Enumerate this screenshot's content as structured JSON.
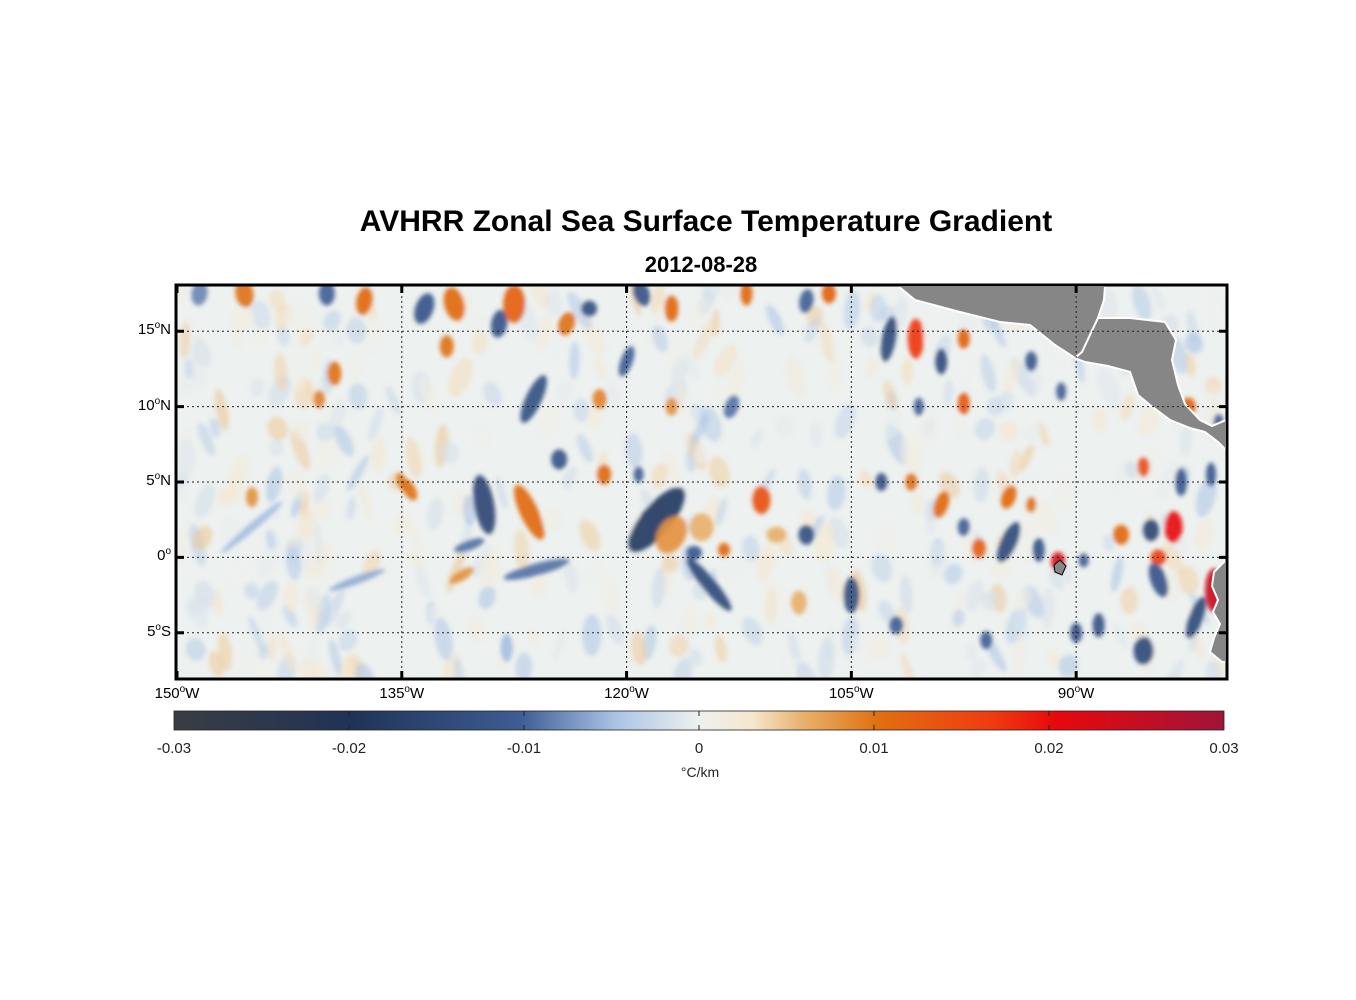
{
  "title": "AVHRR Zonal Sea Surface Temperature Gradient",
  "subtitle": "2012-08-28",
  "lat_labels": [
    {
      "deg": "15",
      "sup": "o",
      "hem": "N",
      "value": 15
    },
    {
      "deg": "10",
      "sup": "o",
      "hem": "N",
      "value": 10
    },
    {
      "deg": "5",
      "sup": "o",
      "hem": "N",
      "value": 5
    },
    {
      "deg": "0",
      "sup": "o",
      "hem": "",
      "value": 0
    },
    {
      "deg": "5",
      "sup": "o",
      "hem": "S",
      "value": -5
    }
  ],
  "lon_labels": [
    {
      "deg": "150",
      "sup": "o",
      "hem": "W",
      "value": -150
    },
    {
      "deg": "135",
      "sup": "o",
      "hem": "W",
      "value": -135
    },
    {
      "deg": "120",
      "sup": "o",
      "hem": "W",
      "value": -120
    },
    {
      "deg": "105",
      "sup": "o",
      "hem": "W",
      "value": -105
    },
    {
      "deg": "90",
      "sup": "o",
      "hem": "W",
      "value": -90
    }
  ],
  "colorbar": {
    "ticks": [
      "-0.03",
      "-0.02",
      "-0.01",
      "0",
      "0.01",
      "0.02",
      "0.03"
    ],
    "units": "°C/km",
    "range": [
      -0.03,
      0.03
    ],
    "stops": [
      {
        "v": 0.0,
        "c": "#3a3d42"
      },
      {
        "v": 0.17,
        "c": "#1f3357"
      },
      {
        "v": 0.33,
        "c": "#3e5d94"
      },
      {
        "v": 0.42,
        "c": "#a9c3e6"
      },
      {
        "v": 0.5,
        "c": "#eef1ee"
      },
      {
        "v": 0.55,
        "c": "#f6e7cf"
      },
      {
        "v": 0.6,
        "c": "#e8b06b"
      },
      {
        "v": 0.67,
        "c": "#e07010"
      },
      {
        "v": 0.78,
        "c": "#f03a10"
      },
      {
        "v": 0.84,
        "c": "#e8080c"
      },
      {
        "v": 1.0,
        "c": "#a0143a"
      }
    ]
  },
  "map": {
    "lon_range": [
      -150,
      -80
    ],
    "lat_range": [
      -8,
      18
    ],
    "background": "#edf1ef",
    "land_color": "#868686"
  },
  "features": [
    {
      "lon": -148.5,
      "lat": 17.5,
      "v": -0.008,
      "rx": 8,
      "ry": 12,
      "rot": 10
    },
    {
      "lon": -145.5,
      "lat": 17.5,
      "v": 0.01,
      "rx": 9,
      "ry": 14,
      "rot": -10
    },
    {
      "lon": -140,
      "lat": 17.5,
      "v": -0.01,
      "rx": 8,
      "ry": 12,
      "rot": 0
    },
    {
      "lon": -137.5,
      "lat": 17.0,
      "v": 0.011,
      "rx": 8,
      "ry": 14,
      "rot": 10
    },
    {
      "lon": -139.5,
      "lat": 12.2,
      "v": 0.01,
      "rx": 7,
      "ry": 12,
      "rot": 0
    },
    {
      "lon": -140.5,
      "lat": 10.5,
      "v": 0.009,
      "rx": 6,
      "ry": 9,
      "rot": 0
    },
    {
      "lon": -133.5,
      "lat": 16.5,
      "v": -0.012,
      "rx": 9,
      "ry": 16,
      "rot": 20
    },
    {
      "lon": -131.5,
      "lat": 16.8,
      "v": 0.011,
      "rx": 10,
      "ry": 17,
      "rot": -15
    },
    {
      "lon": -132.0,
      "lat": 14.0,
      "v": 0.01,
      "rx": 7,
      "ry": 11,
      "rot": 0
    },
    {
      "lon": -128.5,
      "lat": 15.5,
      "v": -0.012,
      "rx": 8,
      "ry": 14,
      "rot": 10
    },
    {
      "lon": -127.5,
      "lat": 16.8,
      "v": 0.012,
      "rx": 11,
      "ry": 19,
      "rot": 0
    },
    {
      "lon": -124,
      "lat": 15.5,
      "v": 0.01,
      "rx": 8,
      "ry": 12,
      "rot": 20
    },
    {
      "lon": -122.5,
      "lat": 16.5,
      "v": -0.013,
      "rx": 8,
      "ry": 8,
      "rot": 0
    },
    {
      "lon": -119,
      "lat": 17.5,
      "v": -0.012,
      "rx": 8,
      "ry": 13,
      "rot": -20
    },
    {
      "lon": -117,
      "lat": 16.5,
      "v": 0.011,
      "rx": 7,
      "ry": 13,
      "rot": 0
    },
    {
      "lon": -126.2,
      "lat": 10.5,
      "v": -0.013,
      "rx": 8,
      "ry": 26,
      "rot": 25
    },
    {
      "lon": -121.8,
      "lat": 10.5,
      "v": 0.009,
      "rx": 7,
      "ry": 10,
      "rot": 0
    },
    {
      "lon": -120,
      "lat": 13.0,
      "v": -0.01,
      "rx": 6,
      "ry": 16,
      "rot": 20
    },
    {
      "lon": -117,
      "lat": 10.0,
      "v": 0.008,
      "rx": 6,
      "ry": 9,
      "rot": 0
    },
    {
      "lon": -113,
      "lat": 10.0,
      "v": -0.009,
      "rx": 7,
      "ry": 12,
      "rot": 20
    },
    {
      "lon": -112,
      "lat": 17.5,
      "v": 0.011,
      "rx": 6,
      "ry": 12,
      "rot": 0
    },
    {
      "lon": -108,
      "lat": 17.0,
      "v": -0.01,
      "rx": 7,
      "ry": 12,
      "rot": 10
    },
    {
      "lon": -106.5,
      "lat": 17.5,
      "v": 0.012,
      "rx": 7,
      "ry": 10,
      "rot": 0
    },
    {
      "lon": -102.5,
      "lat": 14.5,
      "v": -0.014,
      "rx": 7,
      "ry": 23,
      "rot": 10
    },
    {
      "lon": -100.7,
      "lat": 14.5,
      "v": 0.017,
      "rx": 8,
      "ry": 20,
      "rot": 0
    },
    {
      "lon": -99,
      "lat": 13.0,
      "v": -0.014,
      "rx": 6,
      "ry": 13,
      "rot": 0
    },
    {
      "lon": -97.5,
      "lat": 14.5,
      "v": 0.012,
      "rx": 6,
      "ry": 10,
      "rot": 0
    },
    {
      "lon": -97.5,
      "lat": 10.2,
      "v": 0.013,
      "rx": 6,
      "ry": 11,
      "rot": 0
    },
    {
      "lon": -100.5,
      "lat": 10.0,
      "v": -0.01,
      "rx": 5,
      "ry": 9,
      "rot": 0
    },
    {
      "lon": -93,
      "lat": 13.0,
      "v": -0.011,
      "rx": 6,
      "ry": 10,
      "rot": 0
    },
    {
      "lon": -91,
      "lat": 11.0,
      "v": -0.01,
      "rx": 5,
      "ry": 9,
      "rot": 0
    },
    {
      "lon": -82.5,
      "lat": 10.0,
      "v": 0.012,
      "rx": 7,
      "ry": 9,
      "rot": 0
    },
    {
      "lon": -80.5,
      "lat": 9.0,
      "v": -0.01,
      "rx": 5,
      "ry": 8,
      "rot": 0
    },
    {
      "lon": -145,
      "lat": 4.0,
      "v": 0.008,
      "rx": 6,
      "ry": 10,
      "rot": 0
    },
    {
      "lon": -135.0,
      "lat": 5.0,
      "v": 0.009,
      "rx": 5,
      "ry": 10,
      "rot": -20
    },
    {
      "lon": -134.5,
      "lat": 4.5,
      "v": 0.01,
      "rx": 6,
      "ry": 12,
      "rot": -30
    },
    {
      "lon": -129.5,
      "lat": 3.5,
      "v": -0.015,
      "rx": 10,
      "ry": 30,
      "rot": -10
    },
    {
      "lon": -126.5,
      "lat": 3.0,
      "v": 0.011,
      "rx": 9,
      "ry": 30,
      "rot": -25
    },
    {
      "lon": -124.5,
      "lat": 6.5,
      "v": -0.012,
      "rx": 8,
      "ry": 10,
      "rot": 0
    },
    {
      "lon": -121.5,
      "lat": 5.5,
      "v": 0.011,
      "rx": 7,
      "ry": 10,
      "rot": 0
    },
    {
      "lon": -119.2,
      "lat": 5.5,
      "v": -0.01,
      "rx": 5,
      "ry": 8,
      "rot": 0
    },
    {
      "lon": -118,
      "lat": 2.5,
      "v": -0.018,
      "rx": 15,
      "ry": 40,
      "rot": 40
    },
    {
      "lon": -117,
      "lat": 1.5,
      "v": 0.008,
      "rx": 14,
      "ry": 20,
      "rot": 30
    },
    {
      "lon": -115,
      "lat": 2.0,
      "v": 0.006,
      "rx": 12,
      "ry": 14,
      "rot": 0
    },
    {
      "lon": -115.5,
      "lat": 0.3,
      "v": -0.011,
      "rx": 8,
      "ry": 7,
      "rot": 0
    },
    {
      "lon": -113.5,
      "lat": 0.5,
      "v": 0.011,
      "rx": 6,
      "ry": 7,
      "rot": 0
    },
    {
      "lon": -111,
      "lat": 3.8,
      "v": 0.014,
      "rx": 9,
      "ry": 14,
      "rot": 0
    },
    {
      "lon": -110,
      "lat": 1.5,
      "v": 0.006,
      "rx": 10,
      "ry": 8,
      "rot": 0
    },
    {
      "lon": -114.5,
      "lat": -1.8,
      "v": -0.014,
      "rx": 7,
      "ry": 34,
      "rot": -40
    },
    {
      "lon": -108,
      "lat": 1.5,
      "v": -0.013,
      "rx": 8,
      "ry": 10,
      "rot": 0
    },
    {
      "lon": -105,
      "lat": -2.5,
      "v": -0.013,
      "rx": 8,
      "ry": 18,
      "rot": 0
    },
    {
      "lon": -103,
      "lat": 5.0,
      "v": -0.012,
      "rx": 6,
      "ry": 9,
      "rot": 0
    },
    {
      "lon": -101,
      "lat": 5.0,
      "v": 0.01,
      "rx": 6,
      "ry": 9,
      "rot": 0
    },
    {
      "lon": -99,
      "lat": 3.5,
      "v": 0.011,
      "rx": 7,
      "ry": 14,
      "rot": 20
    },
    {
      "lon": -97.5,
      "lat": 2.0,
      "v": -0.01,
      "rx": 6,
      "ry": 9,
      "rot": 0
    },
    {
      "lon": -96.5,
      "lat": 0.6,
      "v": 0.012,
      "rx": 7,
      "ry": 10,
      "rot": 0
    },
    {
      "lon": -94.5,
      "lat": 4.0,
      "v": 0.011,
      "rx": 7,
      "ry": 12,
      "rot": 20
    },
    {
      "lon": -94.5,
      "lat": 1.0,
      "v": -0.014,
      "rx": 8,
      "ry": 22,
      "rot": 25
    },
    {
      "lon": -93,
      "lat": 3.5,
      "v": 0.01,
      "rx": 5,
      "ry": 8,
      "rot": 0
    },
    {
      "lon": -92.5,
      "lat": 0.5,
      "v": -0.012,
      "rx": 6,
      "ry": 12,
      "rot": 0
    },
    {
      "lon": -91.2,
      "lat": -0.3,
      "v": 0.022,
      "rx": 7,
      "ry": 10,
      "rot": 0
    },
    {
      "lon": -89.5,
      "lat": -0.2,
      "v": -0.01,
      "rx": 5,
      "ry": 7,
      "rot": 0
    },
    {
      "lon": -87,
      "lat": 1.5,
      "v": 0.011,
      "rx": 8,
      "ry": 10,
      "rot": 0
    },
    {
      "lon": -85,
      "lat": 1.8,
      "v": -0.015,
      "rx": 8,
      "ry": 11,
      "rot": 0
    },
    {
      "lon": -83.5,
      "lat": 2.0,
      "v": 0.02,
      "rx": 9,
      "ry": 16,
      "rot": 0
    },
    {
      "lon": -84.5,
      "lat": 0.0,
      "v": 0.016,
      "rx": 8,
      "ry": 8,
      "rot": 0
    },
    {
      "lon": -85.5,
      "lat": 6.0,
      "v": 0.014,
      "rx": 6,
      "ry": 10,
      "rot": 0
    },
    {
      "lon": -83,
      "lat": 5.0,
      "v": -0.011,
      "rx": 6,
      "ry": 14,
      "rot": 0
    },
    {
      "lon": -81,
      "lat": 5.5,
      "v": -0.011,
      "rx": 5,
      "ry": 12,
      "rot": 0
    },
    {
      "lon": -80.8,
      "lat": -2.2,
      "v": 0.024,
      "rx": 9,
      "ry": 22,
      "rot": 0
    },
    {
      "lon": -84.5,
      "lat": -1.5,
      "v": -0.012,
      "rx": 8,
      "ry": 18,
      "rot": -20
    },
    {
      "lon": -82,
      "lat": -4.0,
      "v": -0.014,
      "rx": 7,
      "ry": 22,
      "rot": 20
    },
    {
      "lon": -85.5,
      "lat": -6.2,
      "v": -0.014,
      "rx": 10,
      "ry": 14,
      "rot": 0
    },
    {
      "lon": -88.5,
      "lat": -4.5,
      "v": -0.012,
      "rx": 6,
      "ry": 12,
      "rot": 0
    },
    {
      "lon": -90,
      "lat": -5.0,
      "v": -0.012,
      "rx": 6,
      "ry": 10,
      "rot": 0
    },
    {
      "lon": -96,
      "lat": -5.5,
      "v": -0.01,
      "rx": 6,
      "ry": 9,
      "rot": 0
    },
    {
      "lon": -102,
      "lat": -4.5,
      "v": -0.01,
      "rx": 7,
      "ry": 9,
      "rot": 0
    },
    {
      "lon": -108.5,
      "lat": -3.0,
      "v": 0.006,
      "rx": 8,
      "ry": 12,
      "rot": 0
    },
    {
      "lon": -126,
      "lat": -0.8,
      "v": -0.009,
      "rx": 6,
      "ry": 34,
      "rot": 75
    },
    {
      "lon": -130.5,
      "lat": 0.8,
      "v": -0.009,
      "rx": 5,
      "ry": 16,
      "rot": 70
    },
    {
      "lon": -131,
      "lat": -1.2,
      "v": 0.008,
      "rx": 5,
      "ry": 14,
      "rot": 60
    },
    {
      "lon": -138,
      "lat": -1.5,
      "v": -0.006,
      "rx": 4,
      "ry": 30,
      "rot": 70
    },
    {
      "lon": -145,
      "lat": 2.0,
      "v": -0.005,
      "rx": 4,
      "ry": 40,
      "rot": 50
    },
    {
      "lon": -128,
      "lat": -6.0,
      "v": -0.005,
      "rx": 6,
      "ry": 14,
      "rot": 0
    }
  ]
}
